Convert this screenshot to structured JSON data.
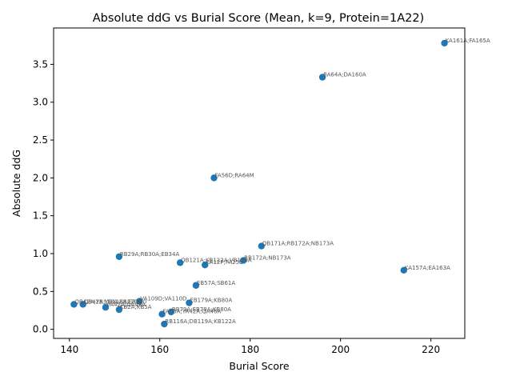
{
  "chart_data": {
    "type": "scatter",
    "title": "Absolute ddG vs Burial Score (Mean, k=9, Protein=1A22)",
    "xlabel": "Burial Score",
    "ylabel": "Absolute ddG",
    "xlim": [
      136.5,
      227.5
    ],
    "ylim": [
      -0.12,
      3.98
    ],
    "xticks": [
      140,
      160,
      180,
      200,
      220
    ],
    "yticks": [
      0.0,
      0.5,
      1.0,
      1.5,
      2.0,
      2.5,
      3.0,
      3.5
    ],
    "grid": false,
    "marker_color": "#1f77b4",
    "label_color": "#555555",
    "points": [
      {
        "x": 223.0,
        "y": 3.78,
        "label": "KA161A;FA165A"
      },
      {
        "x": 196.0,
        "y": 3.33,
        "label": "RA64A;DA160A"
      },
      {
        "x": 172.0,
        "y": 2.0,
        "label": "FA56D;RA64M"
      },
      {
        "x": 182.5,
        "y": 1.1,
        "label": "QB171A;RB172A;NB173A"
      },
      {
        "x": 151.0,
        "y": 0.96,
        "label": "RB29A;RB30A;EB34A"
      },
      {
        "x": 178.5,
        "y": 0.91,
        "label": "RB172A;NB173A"
      },
      {
        "x": 164.5,
        "y": 0.88,
        "label": "QB121A;KB122A;VB126A"
      },
      {
        "x": 170.0,
        "y": 0.85,
        "label": "KA12P;FA25L"
      },
      {
        "x": 214.0,
        "y": 0.78,
        "label": "KA157A;EA163A"
      },
      {
        "x": 168.0,
        "y": 0.58,
        "label": "EB57A;SB61A"
      },
      {
        "x": 155.5,
        "y": 0.37,
        "label": "VA109D;VA110D"
      },
      {
        "x": 166.5,
        "y": 0.35,
        "label": "EB179A;KB80A"
      },
      {
        "x": 141.0,
        "y": 0.33,
        "label": "QB42A;YB118A;EB120A"
      },
      {
        "x": 143.0,
        "y": 0.33,
        "label": "QB42A;YB118A;EB220"
      },
      {
        "x": 148.0,
        "y": 0.29,
        "label": "VA42A;DA49A"
      },
      {
        "x": 151.0,
        "y": 0.26,
        "label": "KB2A;KB5A"
      },
      {
        "x": 162.5,
        "y": 0.23,
        "label": "RB79A;EB79A;KB80A"
      },
      {
        "x": 160.5,
        "y": 0.2,
        "label": "FA58A;YA42A;QA46A"
      },
      {
        "x": 161.0,
        "y": 0.07,
        "label": "RB116A;DB119A;KB122A"
      }
    ]
  }
}
